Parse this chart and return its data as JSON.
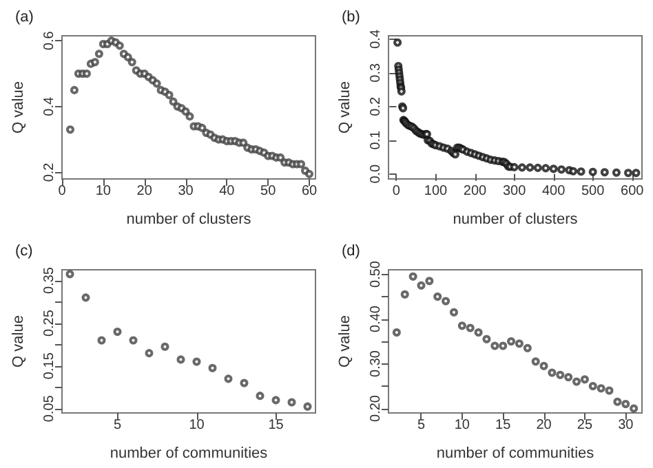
{
  "chart_data": [
    {
      "type": "scatter",
      "title": "(a)",
      "xlabel": "number of clusters",
      "ylabel": "Q value",
      "marker": "circle",
      "grid": false,
      "xlim": [
        0,
        61.5
      ],
      "ylim": [
        0.18,
        0.615
      ],
      "xticks": [
        0,
        10,
        20,
        30,
        40,
        50,
        60
      ],
      "yticks": [
        0.2,
        0.4,
        0.6
      ],
      "series": [
        {
          "color": "#444444",
          "x": [
            2,
            3,
            4,
            5,
            6,
            7,
            8,
            9,
            10,
            11,
            12,
            13,
            14,
            15,
            16,
            17,
            18,
            19,
            20,
            21,
            22,
            23,
            24,
            25,
            26,
            27,
            28,
            29,
            30,
            31,
            32,
            33,
            34,
            35,
            36,
            37,
            38,
            39,
            40,
            41,
            42,
            43,
            44,
            45,
            46,
            47,
            48,
            49,
            50,
            51,
            52,
            53,
            54,
            55,
            56,
            57,
            58,
            59,
            60
          ],
          "values": [
            0.33,
            0.45,
            0.5,
            0.5,
            0.5,
            0.53,
            0.535,
            0.56,
            0.59,
            0.59,
            0.6,
            0.595,
            0.585,
            0.56,
            0.55,
            0.535,
            0.51,
            0.5,
            0.5,
            0.49,
            0.48,
            0.47,
            0.45,
            0.445,
            0.435,
            0.415,
            0.4,
            0.395,
            0.385,
            0.37,
            0.34,
            0.34,
            0.335,
            0.32,
            0.315,
            0.305,
            0.3,
            0.3,
            0.295,
            0.295,
            0.295,
            0.29,
            0.29,
            0.275,
            0.27,
            0.27,
            0.265,
            0.26,
            0.25,
            0.25,
            0.245,
            0.245,
            0.23,
            0.23,
            0.225,
            0.225,
            0.225,
            0.205,
            0.195
          ]
        }
      ]
    },
    {
      "type": "scatter",
      "title": "(b)",
      "xlabel": "number of clusters",
      "ylabel": "Q value",
      "marker": "circle",
      "grid": false,
      "xlim": [
        -20,
        625
      ],
      "ylim": [
        -0.015,
        0.41
      ],
      "xticks": [
        0,
        100,
        200,
        300,
        400,
        500,
        600
      ],
      "yticks": [
        {
          "value": 0,
          "label": "0.0"
        },
        0.1,
        0.2,
        0.3,
        0.4
      ],
      "series": [
        {
          "color": "#111111",
          "x": [
            3,
            5,
            6,
            7,
            8,
            9,
            10,
            11,
            12,
            13,
            15,
            17,
            18,
            20,
            22,
            25,
            30,
            35,
            40,
            45,
            50,
            55,
            60,
            65,
            70,
            75,
            78,
            80,
            85,
            90,
            95,
            100,
            110,
            120,
            130,
            140,
            145,
            150,
            155,
            160,
            165,
            170,
            180,
            190,
            200,
            210,
            220,
            230,
            240,
            250,
            260,
            270,
            275,
            280,
            285,
            290,
            300,
            320,
            340,
            360,
            380,
            400,
            420,
            440,
            450,
            470,
            500,
            530,
            560,
            590,
            610
          ],
          "values": [
            0.39,
            0.32,
            0.31,
            0.3,
            0.29,
            0.28,
            0.27,
            0.26,
            0.255,
            0.245,
            0.2,
            0.195,
            0.16,
            0.158,
            0.155,
            0.15,
            0.145,
            0.142,
            0.14,
            0.135,
            0.128,
            0.124,
            0.12,
            0.118,
            0.116,
            0.118,
            0.118,
            0.1,
            0.098,
            0.09,
            0.088,
            0.085,
            0.082,
            0.078,
            0.075,
            0.068,
            0.062,
            0.058,
            0.078,
            0.078,
            0.075,
            0.072,
            0.066,
            0.062,
            0.058,
            0.054,
            0.05,
            0.046,
            0.042,
            0.04,
            0.038,
            0.036,
            0.035,
            0.03,
            0.022,
            0.021,
            0.02,
            0.019,
            0.019,
            0.018,
            0.017,
            0.015,
            0.013,
            0.011,
            0.008,
            0.007,
            0.006,
            0.005,
            0.004,
            0.003,
            0.003
          ]
        }
      ]
    },
    {
      "type": "scatter",
      "title": "(c)",
      "xlabel": "number of communities",
      "ylabel": "Q value",
      "marker": "circle",
      "grid": false,
      "xlim": [
        1.5,
        17.5
      ],
      "ylim": [
        0.04,
        0.375
      ],
      "xticks": [
        5,
        10,
        15
      ],
      "yticks": [
        0.05,
        {
          "value": 0.1,
          "label": null
        },
        0.15,
        {
          "value": 0.2,
          "label": null
        },
        0.25,
        {
          "value": 0.3,
          "label": null
        },
        0.35
      ],
      "series": [
        {
          "color": "#444444",
          "x": [
            2,
            3,
            4,
            5,
            6,
            7,
            8,
            9,
            10,
            11,
            12,
            13,
            14,
            15,
            16,
            17
          ],
          "values": [
            0.365,
            0.31,
            0.21,
            0.23,
            0.21,
            0.18,
            0.195,
            0.165,
            0.16,
            0.145,
            0.12,
            0.11,
            0.08,
            0.07,
            0.065,
            0.055
          ]
        }
      ]
    },
    {
      "type": "scatter",
      "title": "(d)",
      "xlabel": "number of communities",
      "ylabel": "Q value",
      "marker": "circle",
      "grid": false,
      "xlim": [
        1,
        32
      ],
      "ylim": [
        0.19,
        0.51
      ],
      "xticks": [
        5,
        10,
        15,
        20,
        25,
        30
      ],
      "yticks": [
        {
          "value": 0.2,
          "label": "0.20"
        },
        {
          "value": 0.25,
          "label": null
        },
        {
          "value": 0.3,
          "label": "0.30"
        },
        {
          "value": 0.35,
          "label": null
        },
        {
          "value": 0.4,
          "label": "0.40"
        },
        {
          "value": 0.45,
          "label": null
        },
        {
          "value": 0.5,
          "label": "0.50"
        }
      ],
      "series": [
        {
          "color": "#444444",
          "x": [
            2,
            3,
            4,
            5,
            6,
            7,
            8,
            9,
            10,
            11,
            12,
            13,
            14,
            15,
            16,
            17,
            18,
            19,
            20,
            21,
            22,
            23,
            24,
            25,
            26,
            27,
            28,
            29,
            30,
            31
          ],
          "values": [
            0.37,
            0.455,
            0.495,
            0.475,
            0.485,
            0.45,
            0.44,
            0.415,
            0.385,
            0.38,
            0.37,
            0.355,
            0.34,
            0.34,
            0.35,
            0.345,
            0.335,
            0.305,
            0.295,
            0.28,
            0.275,
            0.27,
            0.26,
            0.265,
            0.25,
            0.245,
            0.24,
            0.215,
            0.21,
            0.2
          ]
        }
      ]
    }
  ]
}
